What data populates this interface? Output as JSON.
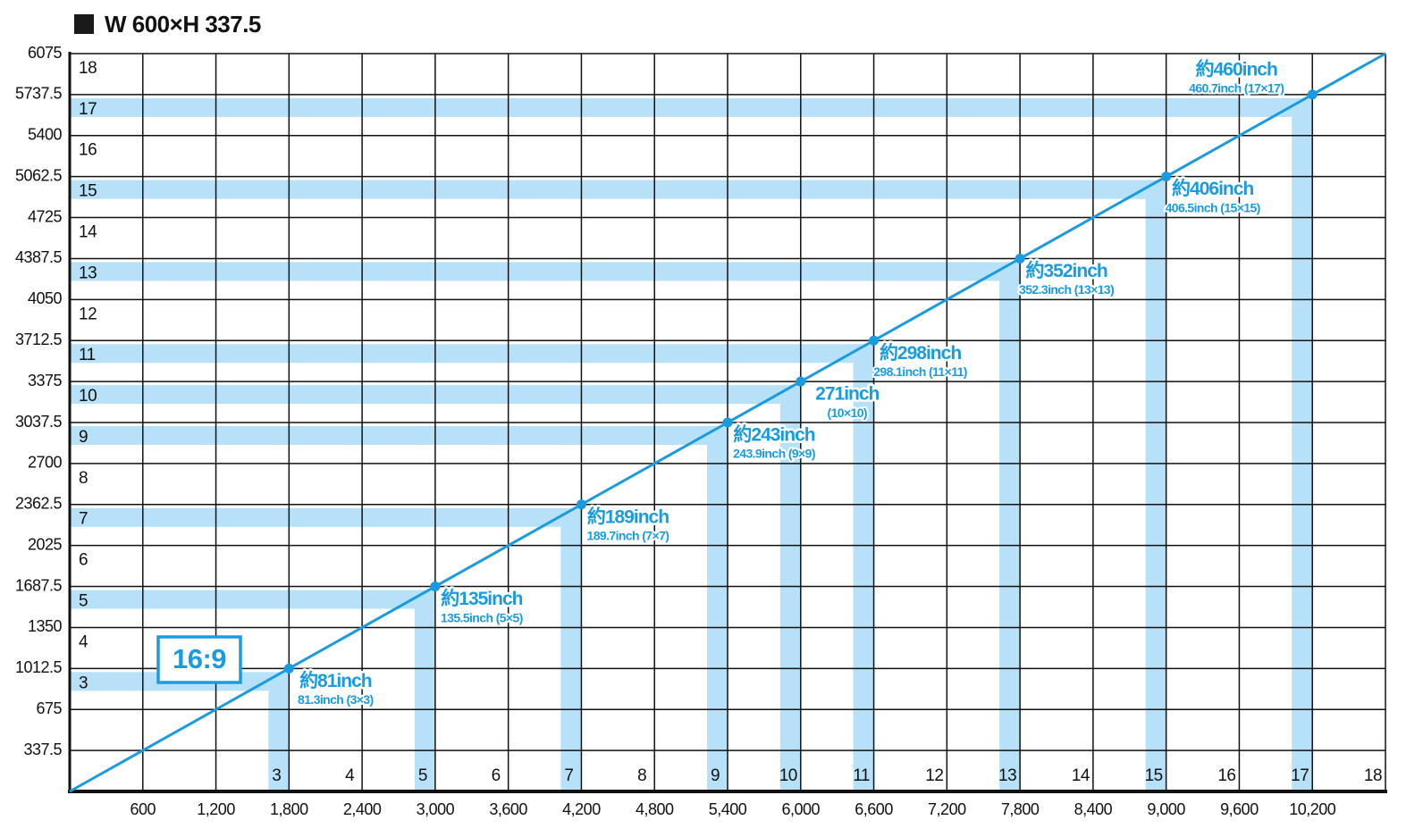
{
  "chart_data": {
    "type": "scatter",
    "title": "W 600×H 337.5",
    "badge": "16:9",
    "xlim": [
      0,
      10800
    ],
    "ylim": [
      0,
      6075
    ],
    "xticks": [
      600,
      {
        "value": 1200,
        "label": "1,200"
      },
      {
        "value": 1800,
        "label": "1,800"
      },
      {
        "value": 2400,
        "label": "2,400"
      },
      {
        "value": 3000,
        "label": "3,000"
      },
      {
        "value": 3600,
        "label": "3,600"
      },
      {
        "value": 4200,
        "label": "4,200"
      },
      {
        "value": 4800,
        "label": "4,800"
      },
      {
        "value": 5400,
        "label": "5,400"
      },
      {
        "value": 6000,
        "label": "6,000"
      },
      {
        "value": 6600,
        "label": "6,600"
      },
      {
        "value": 7200,
        "label": "7,200"
      },
      {
        "value": 7800,
        "label": "7,800"
      },
      {
        "value": 8400,
        "label": "8,400"
      },
      {
        "value": 9000,
        "label": "9,000"
      },
      {
        "value": 9600,
        "label": "9,600"
      },
      {
        "value": 10200,
        "label": "10,200"
      }
    ],
    "yticks": [
      337.5,
      675,
      1012.5,
      1350,
      1687.5,
      2025,
      2362.5,
      2700,
      3037.5,
      3375,
      3712.5,
      4050,
      4387.5,
      4725,
      5062.5,
      5400,
      5737.5,
      6075
    ],
    "grid": true,
    "color": "#1a9be0",
    "band_color": "#b6e1f8",
    "row_labels": [
      3,
      4,
      5,
      6,
      7,
      8,
      9,
      10,
      11,
      12,
      13,
      14,
      15,
      16,
      17,
      18
    ],
    "column_labels": [
      3,
      4,
      5,
      6,
      7,
      8,
      9,
      10,
      11,
      12,
      13,
      14,
      15,
      16,
      17,
      18
    ],
    "x": [
      1800,
      3000,
      4200,
      5400,
      6000,
      6600,
      7800,
      9000,
      10200
    ],
    "y": [
      1012.5,
      1687.5,
      2362.5,
      3037.5,
      3375,
      3712.5,
      4387.5,
      5062.5,
      5737.5
    ],
    "point_labels": [
      "約81inch",
      "約135inch",
      "約189inch",
      "約243inch",
      "271inch",
      "約298inch",
      "約352inch",
      "約406inch",
      "約460inch"
    ],
    "point_sublabels": [
      "81.3inch (3×3)",
      "135.5inch (5×5)",
      "189.7inch (7×7)",
      "243.9inch (9×9)",
      "(10×10)",
      "298.1inch (11×11)",
      "352.3inch (13×13)",
      "406.5inch (15×15)",
      "460.7inch (17×17)"
    ]
  }
}
